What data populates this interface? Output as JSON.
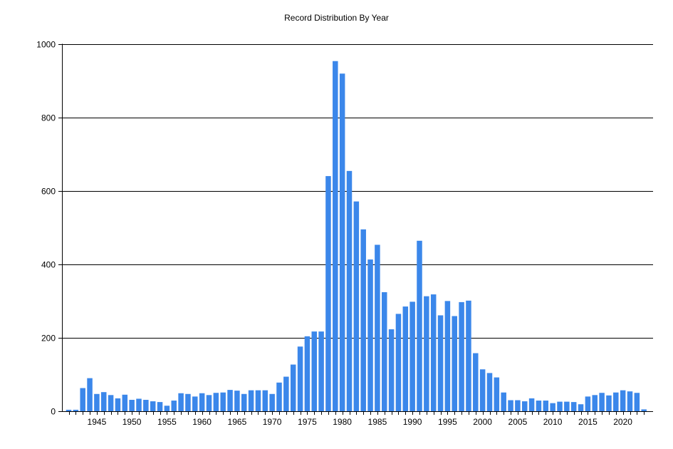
{
  "chart_data": {
    "type": "bar",
    "title": "Record Distribution By Year",
    "xlabel": "",
    "ylabel": "",
    "ylim": [
      0,
      1000
    ],
    "y_ticks": [
      0,
      200,
      400,
      600,
      800,
      1000
    ],
    "x_tick_labels": [
      1945,
      1950,
      1955,
      1960,
      1965,
      1970,
      1975,
      1980,
      1985,
      1990,
      1995,
      2000,
      2005,
      2010,
      2015,
      2020
    ],
    "grid": "horizontal",
    "legend": "none",
    "bar_color": "#3b87ea",
    "categories": [
      1941,
      1942,
      1943,
      1944,
      1945,
      1946,
      1947,
      1948,
      1949,
      1950,
      1951,
      1952,
      1953,
      1954,
      1955,
      1956,
      1957,
      1958,
      1959,
      1960,
      1961,
      1962,
      1963,
      1964,
      1965,
      1966,
      1967,
      1968,
      1969,
      1970,
      1971,
      1972,
      1973,
      1974,
      1975,
      1976,
      1977,
      1978,
      1979,
      1980,
      1981,
      1982,
      1983,
      1984,
      1985,
      1986,
      1987,
      1988,
      1989,
      1990,
      1991,
      1992,
      1993,
      1994,
      1995,
      1996,
      1997,
      1998,
      1999,
      2000,
      2001,
      2002,
      2003,
      2004,
      2005,
      2006,
      2007,
      2008,
      2009,
      2010,
      2011,
      2012,
      2013,
      2014,
      2015,
      2016,
      2017,
      2018,
      2019,
      2020,
      2021,
      2022,
      2023
    ],
    "values": [
      4,
      4,
      63,
      90,
      47,
      52,
      44,
      35,
      45,
      31,
      34,
      31,
      27,
      25,
      15,
      29,
      49,
      47,
      40,
      49,
      44,
      50,
      51,
      58,
      56,
      47,
      57,
      57,
      57,
      47,
      78,
      94,
      127,
      176,
      204,
      217,
      217,
      640,
      953,
      919,
      654,
      571,
      495,
      413,
      453,
      324,
      223,
      265,
      285,
      298,
      464,
      313,
      318,
      261,
      300,
      259,
      297,
      301,
      158,
      114,
      104,
      92,
      51,
      30,
      30,
      27,
      35,
      29,
      29,
      22,
      26,
      26,
      25,
      19,
      40,
      44,
      50,
      43,
      51,
      57,
      54,
      50,
      5
    ]
  }
}
